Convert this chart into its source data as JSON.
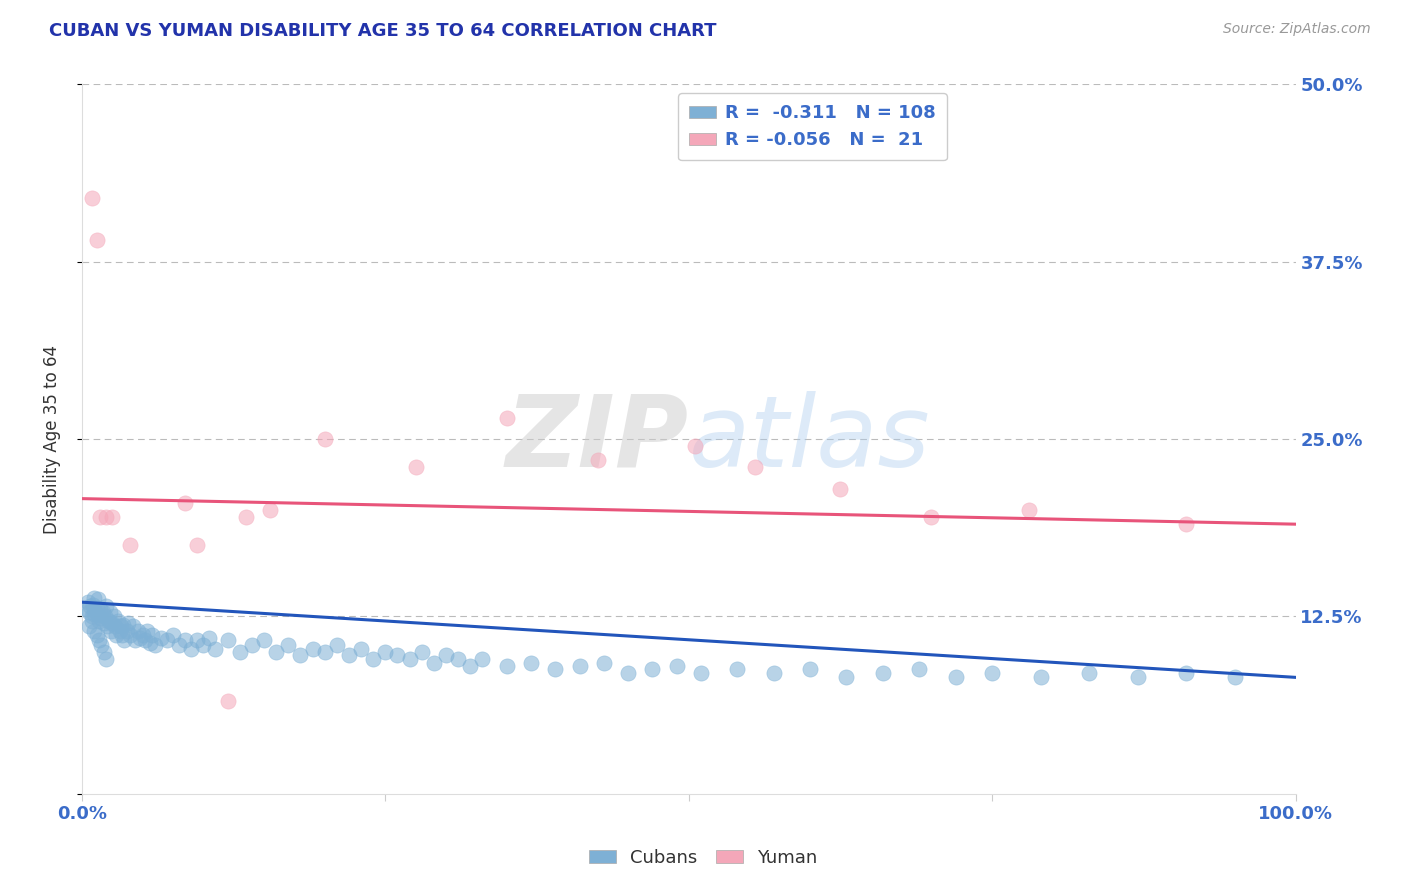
{
  "title": "CUBAN VS YUMAN DISABILITY AGE 35 TO 64 CORRELATION CHART",
  "source": "Source: ZipAtlas.com",
  "ylabel": "Disability Age 35 to 64",
  "xlim": [
    0.0,
    1.0
  ],
  "ylim": [
    0.0,
    0.5
  ],
  "r_cubans": -0.311,
  "n_cubans": 108,
  "r_yuman": -0.056,
  "n_yuman": 21,
  "blue_color": "#7EB0D5",
  "pink_color": "#F4A7B9",
  "trend_blue": "#2255BB",
  "trend_pink": "#E8547A",
  "title_color": "#2233AA",
  "source_color": "#999999",
  "ylabel_color": "#333333",
  "tick_color": "#3B6CC9",
  "grid_color": "#BBBBBB",
  "blue_trend_start": 0.135,
  "blue_trend_end": 0.082,
  "pink_trend_start": 0.208,
  "pink_trend_end": 0.19,
  "cubans_x": [
    0.004,
    0.005,
    0.006,
    0.007,
    0.008,
    0.009,
    0.01,
    0.01,
    0.011,
    0.012,
    0.013,
    0.013,
    0.014,
    0.015,
    0.016,
    0.017,
    0.018,
    0.019,
    0.02,
    0.021,
    0.022,
    0.023,
    0.024,
    0.025,
    0.026,
    0.027,
    0.028,
    0.03,
    0.031,
    0.032,
    0.033,
    0.034,
    0.035,
    0.037,
    0.038,
    0.04,
    0.042,
    0.044,
    0.046,
    0.048,
    0.05,
    0.052,
    0.054,
    0.056,
    0.058,
    0.06,
    0.065,
    0.07,
    0.075,
    0.08,
    0.085,
    0.09,
    0.095,
    0.1,
    0.105,
    0.11,
    0.12,
    0.13,
    0.14,
    0.15,
    0.16,
    0.17,
    0.18,
    0.19,
    0.2,
    0.21,
    0.22,
    0.23,
    0.24,
    0.25,
    0.26,
    0.27,
    0.28,
    0.29,
    0.3,
    0.31,
    0.32,
    0.33,
    0.35,
    0.37,
    0.39,
    0.41,
    0.43,
    0.45,
    0.47,
    0.49,
    0.51,
    0.54,
    0.57,
    0.6,
    0.63,
    0.66,
    0.69,
    0.72,
    0.75,
    0.79,
    0.83,
    0.87,
    0.91,
    0.95,
    0.006,
    0.008,
    0.01,
    0.012,
    0.014,
    0.016,
    0.018,
    0.02
  ],
  "cubans_y": [
    0.13,
    0.135,
    0.128,
    0.132,
    0.125,
    0.133,
    0.127,
    0.138,
    0.129,
    0.131,
    0.126,
    0.137,
    0.122,
    0.13,
    0.124,
    0.128,
    0.12,
    0.125,
    0.132,
    0.118,
    0.122,
    0.128,
    0.115,
    0.12,
    0.125,
    0.118,
    0.112,
    0.122,
    0.115,
    0.118,
    0.112,
    0.119,
    0.108,
    0.115,
    0.12,
    0.112,
    0.118,
    0.108,
    0.115,
    0.11,
    0.112,
    0.108,
    0.115,
    0.106,
    0.112,
    0.105,
    0.11,
    0.108,
    0.112,
    0.105,
    0.108,
    0.102,
    0.108,
    0.105,
    0.11,
    0.102,
    0.108,
    0.1,
    0.105,
    0.108,
    0.1,
    0.105,
    0.098,
    0.102,
    0.1,
    0.105,
    0.098,
    0.102,
    0.095,
    0.1,
    0.098,
    0.095,
    0.1,
    0.092,
    0.098,
    0.095,
    0.09,
    0.095,
    0.09,
    0.092,
    0.088,
    0.09,
    0.092,
    0.085,
    0.088,
    0.09,
    0.085,
    0.088,
    0.085,
    0.088,
    0.082,
    0.085,
    0.088,
    0.082,
    0.085,
    0.082,
    0.085,
    0.082,
    0.085,
    0.082,
    0.118,
    0.122,
    0.115,
    0.112,
    0.108,
    0.105,
    0.1,
    0.095
  ],
  "yuman_x": [
    0.008,
    0.012,
    0.015,
    0.02,
    0.025,
    0.04,
    0.085,
    0.095,
    0.12,
    0.135,
    0.155,
    0.2,
    0.275,
    0.35,
    0.425,
    0.505,
    0.555,
    0.625,
    0.7,
    0.78,
    0.91
  ],
  "yuman_y": [
    0.42,
    0.39,
    0.195,
    0.195,
    0.195,
    0.175,
    0.205,
    0.175,
    0.065,
    0.195,
    0.2,
    0.25,
    0.23,
    0.265,
    0.235,
    0.245,
    0.23,
    0.215,
    0.195,
    0.2,
    0.19
  ]
}
